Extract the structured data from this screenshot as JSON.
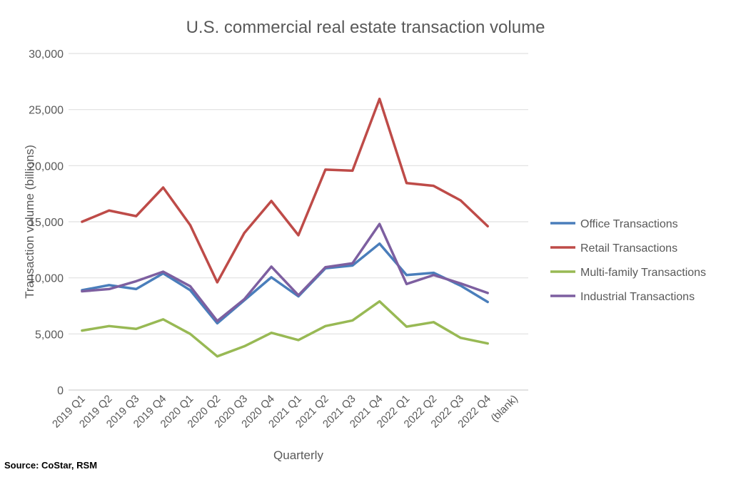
{
  "chart_data": {
    "type": "line",
    "title": "U.S. commercial real estate transaction volume",
    "xlabel": "Quarterly",
    "ylabel": "Transaction volume (billions)",
    "ylim": [
      0,
      30000
    ],
    "yticks": [
      0,
      5000,
      10000,
      15000,
      20000,
      25000,
      30000
    ],
    "ytick_labels": [
      "0",
      "5,000",
      "10,000",
      "15,000",
      "20,000",
      "25,000",
      "30,000"
    ],
    "grid": true,
    "legend_position": "right",
    "categories": [
      "2019 Q1",
      "2019 Q2",
      "2019 Q3",
      "2019 Q4",
      "2020 Q1",
      "2020 Q2",
      "2020 Q3",
      "2020 Q4",
      "2021 Q1",
      "2021 Q2",
      "2021 Q3",
      "2021 Q4",
      "2022 Q1",
      "2022 Q2",
      "2022 Q3",
      "2022 Q4",
      "(blank)"
    ],
    "series": [
      {
        "name": "Office Transactions",
        "color": "#4a7ebb",
        "values": [
          8900,
          9350,
          9000,
          10400,
          8900,
          5950,
          8000,
          10050,
          8350,
          10850,
          11100,
          13050,
          10250,
          10450,
          9300,
          7850,
          null
        ]
      },
      {
        "name": "Retail Transactions",
        "color": "#be4b48",
        "values": [
          15000,
          16000,
          15500,
          18050,
          14700,
          9600,
          14000,
          16850,
          13800,
          19650,
          19550,
          25950,
          18450,
          18200,
          16900,
          14600,
          null
        ]
      },
      {
        "name": "Multi-family Transactions",
        "color": "#98b954",
        "values": [
          5300,
          5700,
          5450,
          6300,
          5000,
          3000,
          3900,
          5100,
          4450,
          5700,
          6200,
          7900,
          5650,
          6050,
          4650,
          4150,
          null
        ]
      },
      {
        "name": "Industrial Transactions",
        "color": "#7d5fa0",
        "values": [
          8800,
          9000,
          9700,
          10550,
          9250,
          6150,
          8100,
          11000,
          8450,
          10950,
          11300,
          14800,
          9450,
          10250,
          9500,
          8650,
          null
        ]
      }
    ]
  },
  "source": "Source: CoStar, RSM"
}
